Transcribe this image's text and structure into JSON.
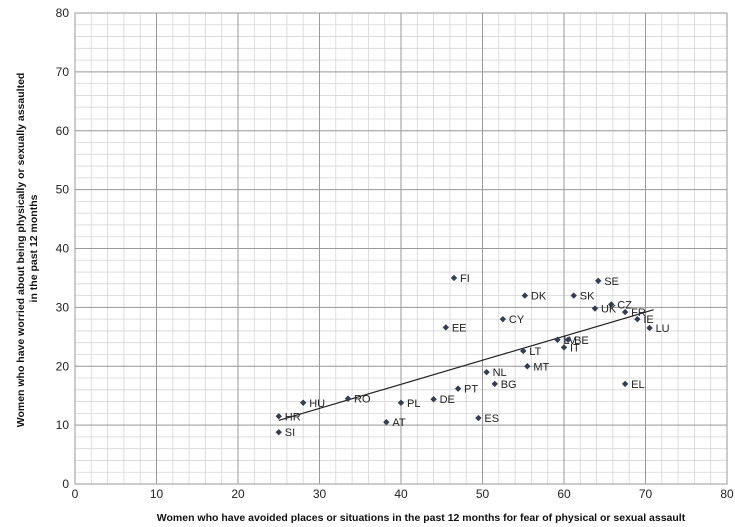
{
  "chart_data": {
    "type": "scatter",
    "xlabel": "Women who have avoided places or situations in the past 12 months for fear of physical or sexual assault",
    "ylabel_lines": [
      "Women who have worried about being physically or sexually assaulted",
      "in the past 12 months"
    ],
    "xlim": [
      0,
      80
    ],
    "ylim": [
      0,
      80
    ],
    "x_ticks": [
      0,
      10,
      20,
      30,
      40,
      50,
      60,
      70,
      80
    ],
    "y_ticks": [
      0,
      10,
      20,
      30,
      40,
      50,
      60,
      70,
      80
    ],
    "grid": true,
    "trendline": {
      "x": [
        25,
        71
      ],
      "y": [
        10.8,
        29.6
      ]
    },
    "points": [
      {
        "label": "FI",
        "x": 46.5,
        "y": 35
      },
      {
        "label": "SE",
        "x": 64.2,
        "y": 34.5
      },
      {
        "label": "DK",
        "x": 55.2,
        "y": 32
      },
      {
        "label": "SK",
        "x": 61.2,
        "y": 32
      },
      {
        "label": "CZ",
        "x": 65.8,
        "y": 30.5
      },
      {
        "label": "UK",
        "x": 63.8,
        "y": 29.8
      },
      {
        "label": "FR",
        "x": 67.5,
        "y": 29.2
      },
      {
        "label": "IE",
        "x": 69,
        "y": 28
      },
      {
        "label": "CY",
        "x": 52.5,
        "y": 28
      },
      {
        "label": "EE",
        "x": 45.5,
        "y": 26.6
      },
      {
        "label": "LU",
        "x": 70.5,
        "y": 26.5
      },
      {
        "label": "LV",
        "x": 59.2,
        "y": 24.5
      },
      {
        "label": "BE",
        "x": 60.5,
        "y": 24.5
      },
      {
        "label": "IT",
        "x": 60,
        "y": 23.2
      },
      {
        "label": "LT",
        "x": 55,
        "y": 22.6
      },
      {
        "label": "MT",
        "x": 55.5,
        "y": 20
      },
      {
        "label": "NL",
        "x": 50.5,
        "y": 19
      },
      {
        "label": "BG",
        "x": 51.5,
        "y": 17
      },
      {
        "label": "EL",
        "x": 67.5,
        "y": 17
      },
      {
        "label": "PT",
        "x": 47,
        "y": 16.2
      },
      {
        "label": "RO",
        "x": 33.5,
        "y": 14.5
      },
      {
        "label": "DE",
        "x": 44,
        "y": 14.4
      },
      {
        "label": "HU",
        "x": 28,
        "y": 13.8
      },
      {
        "label": "PL",
        "x": 40,
        "y": 13.8
      },
      {
        "label": "HR",
        "x": 25,
        "y": 11.5
      },
      {
        "label": "ES",
        "x": 49.5,
        "y": 11.2
      },
      {
        "label": "AT",
        "x": 38.2,
        "y": 10.5
      },
      {
        "label": "SI",
        "x": 25,
        "y": 8.8
      }
    ]
  }
}
